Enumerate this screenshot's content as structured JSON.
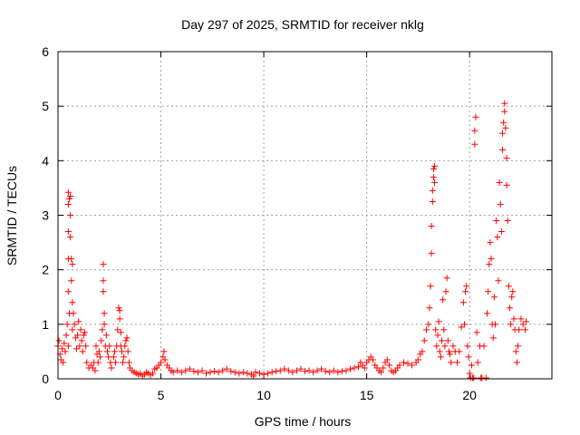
{
  "chart_data": {
    "type": "scatter",
    "title": "Day 297 of 2025, SRMTID for receiver nklg",
    "xlabel": "GPS time / hours",
    "ylabel": "SRMTID / TECUs",
    "xlim": [
      0,
      24
    ],
    "ylim": [
      0,
      6
    ],
    "xticks": [
      0,
      5,
      10,
      15,
      20
    ],
    "yticks": [
      0,
      1,
      2,
      3,
      4,
      5,
      6
    ],
    "grid": true,
    "marker": "+",
    "color": "#ff0000",
    "series": [
      {
        "name": "SRMTID",
        "points": [
          [
            0.0,
            0.6
          ],
          [
            0.05,
            0.7
          ],
          [
            0.1,
            0.45
          ],
          [
            0.15,
            0.35
          ],
          [
            0.2,
            0.55
          ],
          [
            0.25,
            0.3
          ],
          [
            0.3,
            0.65
          ],
          [
            0.35,
            0.5
          ],
          [
            0.4,
            0.8
          ],
          [
            0.45,
            1.0
          ],
          [
            0.5,
            0.6
          ],
          [
            0.5,
            1.6
          ],
          [
            0.5,
            2.2
          ],
          [
            0.5,
            2.7
          ],
          [
            0.5,
            3.2
          ],
          [
            0.5,
            3.42
          ],
          [
            0.55,
            3.3
          ],
          [
            0.55,
            1.2
          ],
          [
            0.6,
            2.6
          ],
          [
            0.6,
            3.0
          ],
          [
            0.6,
            3.35
          ],
          [
            0.65,
            2.2
          ],
          [
            0.65,
            1.8
          ],
          [
            0.7,
            2.1
          ],
          [
            0.7,
            1.4
          ],
          [
            0.7,
            0.9
          ],
          [
            0.75,
            1.2
          ],
          [
            0.8,
            1.0
          ],
          [
            0.85,
            0.75
          ],
          [
            0.9,
            0.55
          ],
          [
            0.95,
            0.8
          ],
          [
            1.0,
            1.05
          ],
          [
            1.05,
            0.6
          ],
          [
            1.1,
            0.9
          ],
          [
            1.15,
            0.7
          ],
          [
            1.2,
            0.5
          ],
          [
            1.25,
            0.8
          ],
          [
            1.3,
            0.85
          ],
          [
            1.35,
            0.6
          ],
          [
            1.4,
            0.3
          ],
          [
            1.5,
            0.2
          ],
          [
            1.6,
            0.25
          ],
          [
            1.7,
            0.2
          ],
          [
            1.75,
            0.3
          ],
          [
            1.8,
            0.15
          ],
          [
            1.85,
            0.6
          ],
          [
            1.9,
            0.45
          ],
          [
            1.95,
            0.3
          ],
          [
            2.0,
            0.5
          ],
          [
            2.05,
            0.4
          ],
          [
            2.1,
            0.7
          ],
          [
            2.15,
            0.9
          ],
          [
            2.2,
            2.1
          ],
          [
            2.2,
            1.8
          ],
          [
            2.2,
            1.6
          ],
          [
            2.25,
            1.2
          ],
          [
            2.25,
            1.0
          ],
          [
            2.3,
            0.6
          ],
          [
            2.35,
            0.8
          ],
          [
            2.4,
            0.5
          ],
          [
            2.45,
            0.4
          ],
          [
            2.5,
            0.6
          ],
          [
            2.55,
            0.3
          ],
          [
            2.6,
            0.2
          ],
          [
            2.7,
            0.4
          ],
          [
            2.75,
            0.5
          ],
          [
            2.8,
            0.3
          ],
          [
            2.85,
            0.6
          ],
          [
            2.9,
            0.9
          ],
          [
            2.95,
            1.3
          ],
          [
            3.0,
            1.25
          ],
          [
            3.0,
            1.1
          ],
          [
            3.05,
            0.85
          ],
          [
            3.05,
            0.6
          ],
          [
            3.1,
            0.5
          ],
          [
            3.15,
            0.3
          ],
          [
            3.2,
            0.4
          ],
          [
            3.25,
            0.6
          ],
          [
            3.3,
            0.7
          ],
          [
            3.35,
            0.75
          ],
          [
            3.4,
            0.5
          ],
          [
            3.45,
            0.3
          ],
          [
            3.5,
            0.2
          ],
          [
            3.6,
            0.15
          ],
          [
            3.7,
            0.12
          ],
          [
            3.8,
            0.1
          ],
          [
            3.9,
            0.08
          ],
          [
            4.0,
            0.1
          ],
          [
            4.1,
            0.05
          ],
          [
            4.2,
            0.08
          ],
          [
            4.3,
            0.12
          ],
          [
            4.4,
            0.1
          ],
          [
            4.5,
            0.07
          ],
          [
            4.6,
            0.1
          ],
          [
            4.7,
            0.18
          ],
          [
            4.8,
            0.2
          ],
          [
            4.9,
            0.25
          ],
          [
            5.0,
            0.3
          ],
          [
            5.1,
            0.4
          ],
          [
            5.15,
            0.5
          ],
          [
            5.2,
            0.35
          ],
          [
            5.3,
            0.25
          ],
          [
            5.4,
            0.2
          ],
          [
            5.5,
            0.15
          ],
          [
            5.6,
            0.12
          ],
          [
            5.8,
            0.15
          ],
          [
            6.0,
            0.12
          ],
          [
            6.2,
            0.15
          ],
          [
            6.4,
            0.18
          ],
          [
            6.6,
            0.14
          ],
          [
            6.8,
            0.12
          ],
          [
            7.0,
            0.15
          ],
          [
            7.2,
            0.1
          ],
          [
            7.4,
            0.12
          ],
          [
            7.6,
            0.14
          ],
          [
            7.8,
            0.12
          ],
          [
            8.0,
            0.15
          ],
          [
            8.2,
            0.18
          ],
          [
            8.4,
            0.14
          ],
          [
            8.6,
            0.12
          ],
          [
            8.8,
            0.1
          ],
          [
            9.0,
            0.12
          ],
          [
            9.2,
            0.1
          ],
          [
            9.4,
            0.08
          ],
          [
            9.5,
            0.05
          ],
          [
            9.6,
            0.12
          ],
          [
            9.8,
            0.1
          ],
          [
            10.0,
            0.08
          ],
          [
            10.2,
            0.1
          ],
          [
            10.4,
            0.12
          ],
          [
            10.6,
            0.14
          ],
          [
            10.8,
            0.15
          ],
          [
            11.0,
            0.18
          ],
          [
            11.2,
            0.15
          ],
          [
            11.4,
            0.12
          ],
          [
            11.6,
            0.15
          ],
          [
            11.8,
            0.18
          ],
          [
            12.0,
            0.14
          ],
          [
            12.2,
            0.15
          ],
          [
            12.4,
            0.12
          ],
          [
            12.6,
            0.15
          ],
          [
            12.8,
            0.18
          ],
          [
            13.0,
            0.14
          ],
          [
            13.2,
            0.12
          ],
          [
            13.4,
            0.15
          ],
          [
            13.6,
            0.12
          ],
          [
            13.8,
            0.14
          ],
          [
            14.0,
            0.15
          ],
          [
            14.2,
            0.18
          ],
          [
            14.4,
            0.2
          ],
          [
            14.6,
            0.22
          ],
          [
            14.7,
            0.3
          ],
          [
            14.8,
            0.25
          ],
          [
            14.9,
            0.2
          ],
          [
            15.0,
            0.3
          ],
          [
            15.1,
            0.35
          ],
          [
            15.2,
            0.4
          ],
          [
            15.3,
            0.35
          ],
          [
            15.4,
            0.25
          ],
          [
            15.5,
            0.2
          ],
          [
            15.6,
            0.15
          ],
          [
            15.7,
            0.12
          ],
          [
            15.8,
            0.2
          ],
          [
            15.9,
            0.3
          ],
          [
            16.0,
            0.35
          ],
          [
            16.1,
            0.25
          ],
          [
            16.2,
            0.15
          ],
          [
            16.3,
            0.12
          ],
          [
            16.4,
            0.15
          ],
          [
            16.5,
            0.2
          ],
          [
            16.6,
            0.25
          ],
          [
            16.8,
            0.3
          ],
          [
            17.0,
            0.28
          ],
          [
            17.2,
            0.25
          ],
          [
            17.4,
            0.3
          ],
          [
            17.5,
            0.35
          ],
          [
            17.6,
            0.45
          ],
          [
            17.7,
            0.5
          ],
          [
            17.8,
            0.7
          ],
          [
            17.9,
            0.9
          ],
          [
            18.0,
            1.0
          ],
          [
            18.05,
            1.3
          ],
          [
            18.1,
            1.7
          ],
          [
            18.15,
            2.3
          ],
          [
            18.15,
            2.8
          ],
          [
            18.2,
            3.25
          ],
          [
            18.2,
            3.45
          ],
          [
            18.25,
            3.7
          ],
          [
            18.25,
            3.85
          ],
          [
            18.3,
            3.9
          ],
          [
            18.3,
            3.6
          ],
          [
            18.35,
            0.9
          ],
          [
            18.4,
            0.6
          ],
          [
            18.45,
            0.8
          ],
          [
            18.5,
            1.05
          ],
          [
            18.55,
            0.5
          ],
          [
            18.6,
            0.4
          ],
          [
            18.65,
            0.7
          ],
          [
            18.7,
            1.45
          ],
          [
            18.75,
            0.9
          ],
          [
            18.8,
            0.6
          ],
          [
            18.85,
            1.6
          ],
          [
            18.9,
            1.85
          ],
          [
            18.95,
            0.7
          ],
          [
            19.0,
            0.5
          ],
          [
            19.05,
            0.45
          ],
          [
            19.1,
            0.3
          ],
          [
            19.2,
            0.6
          ],
          [
            19.3,
            0.5
          ],
          [
            19.4,
            0.3
          ],
          [
            19.5,
            0.5
          ],
          [
            19.6,
            0.95
          ],
          [
            19.7,
            1.4
          ],
          [
            19.75,
            1.0
          ],
          [
            19.8,
            1.6
          ],
          [
            19.85,
            1.7
          ],
          [
            19.9,
            0.6
          ],
          [
            19.95,
            0.4
          ],
          [
            20.0,
            0.1
          ],
          [
            20.05,
            0.0
          ],
          [
            20.1,
            0.25
          ],
          [
            20.15,
            0.0
          ],
          [
            20.2,
            0.0
          ],
          [
            20.25,
            4.3
          ],
          [
            20.25,
            4.55
          ],
          [
            20.3,
            4.8
          ],
          [
            20.35,
            0.85
          ],
          [
            20.4,
            0.3
          ],
          [
            20.5,
            0.6
          ],
          [
            20.55,
            0.0
          ],
          [
            20.6,
            0.0
          ],
          [
            20.7,
            0.6
          ],
          [
            20.8,
            0.0
          ],
          [
            20.85,
            1.2
          ],
          [
            20.9,
            1.6
          ],
          [
            20.95,
            2.1
          ],
          [
            21.0,
            2.5
          ],
          [
            21.05,
            2.2
          ],
          [
            21.1,
            1.0
          ],
          [
            21.15,
            0.75
          ],
          [
            21.2,
            1.5
          ],
          [
            21.25,
            1.0
          ],
          [
            21.3,
            2.9
          ],
          [
            21.35,
            2.6
          ],
          [
            21.4,
            1.8
          ],
          [
            21.45,
            3.6
          ],
          [
            21.5,
            3.2
          ],
          [
            21.55,
            2.7
          ],
          [
            21.6,
            4.2
          ],
          [
            21.6,
            4.5
          ],
          [
            21.65,
            4.7
          ],
          [
            21.7,
            4.9
          ],
          [
            21.7,
            5.05
          ],
          [
            21.75,
            4.6
          ],
          [
            21.8,
            4.05
          ],
          [
            21.8,
            3.55
          ],
          [
            21.85,
            2.9
          ],
          [
            21.9,
            1.7
          ],
          [
            21.95,
            1.3
          ],
          [
            22.0,
            1.0
          ],
          [
            22.05,
            1.5
          ],
          [
            22.1,
            1.6
          ],
          [
            22.15,
            1.1
          ],
          [
            22.2,
            0.9
          ],
          [
            22.25,
            0.5
          ],
          [
            22.3,
            0.3
          ],
          [
            22.35,
            0.6
          ],
          [
            22.4,
            0.9
          ],
          [
            22.5,
            1.1
          ],
          [
            22.6,
            1.0
          ],
          [
            22.7,
            0.9
          ],
          [
            22.75,
            1.05
          ]
        ]
      }
    ]
  }
}
